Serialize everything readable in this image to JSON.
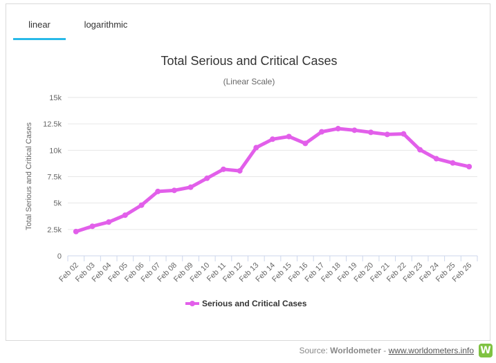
{
  "tabs": [
    {
      "label": "linear",
      "active": true
    },
    {
      "label": "logarithmic",
      "active": false
    }
  ],
  "chart_data": {
    "type": "line",
    "title": "Total Serious and Critical Cases",
    "subtitle": "(Linear Scale)",
    "ylabel": "Total Serious and Critical Cases",
    "xlabel": "",
    "ylim": [
      0,
      15000
    ],
    "yticks": [
      0,
      2500,
      5000,
      7500,
      10000,
      12500,
      15000
    ],
    "ytick_labels": [
      "0",
      "2.5k",
      "5k",
      "7.5k",
      "10k",
      "12.5k",
      "15k"
    ],
    "grid": true,
    "legend_position": "bottom-center",
    "categories": [
      "Feb 02",
      "Feb 03",
      "Feb 04",
      "Feb 05",
      "Feb 06",
      "Feb 07",
      "Feb 08",
      "Feb 09",
      "Feb 10",
      "Feb 11",
      "Feb 12",
      "Feb 13",
      "Feb 14",
      "Feb 15",
      "Feb 16",
      "Feb 17",
      "Feb 18",
      "Feb 19",
      "Feb 20",
      "Feb 21",
      "Feb 22",
      "Feb 23",
      "Feb 24",
      "Feb 25",
      "Feb 26"
    ],
    "series": [
      {
        "name": "Serious and Critical Cases",
        "color": "#e25fea",
        "values": [
          2300,
          2800,
          3200,
          3850,
          4800,
          6100,
          6200,
          6500,
          7350,
          8200,
          8050,
          10250,
          11050,
          11300,
          10650,
          11750,
          12050,
          11900,
          11700,
          11500,
          11550,
          10050,
          9200,
          8800,
          8450
        ]
      }
    ]
  },
  "footer": {
    "source_prefix": "Source: ",
    "source_name": "Worldometer",
    "separator": " - ",
    "source_link": "www.worldometers.info",
    "logo_letter": "W"
  }
}
